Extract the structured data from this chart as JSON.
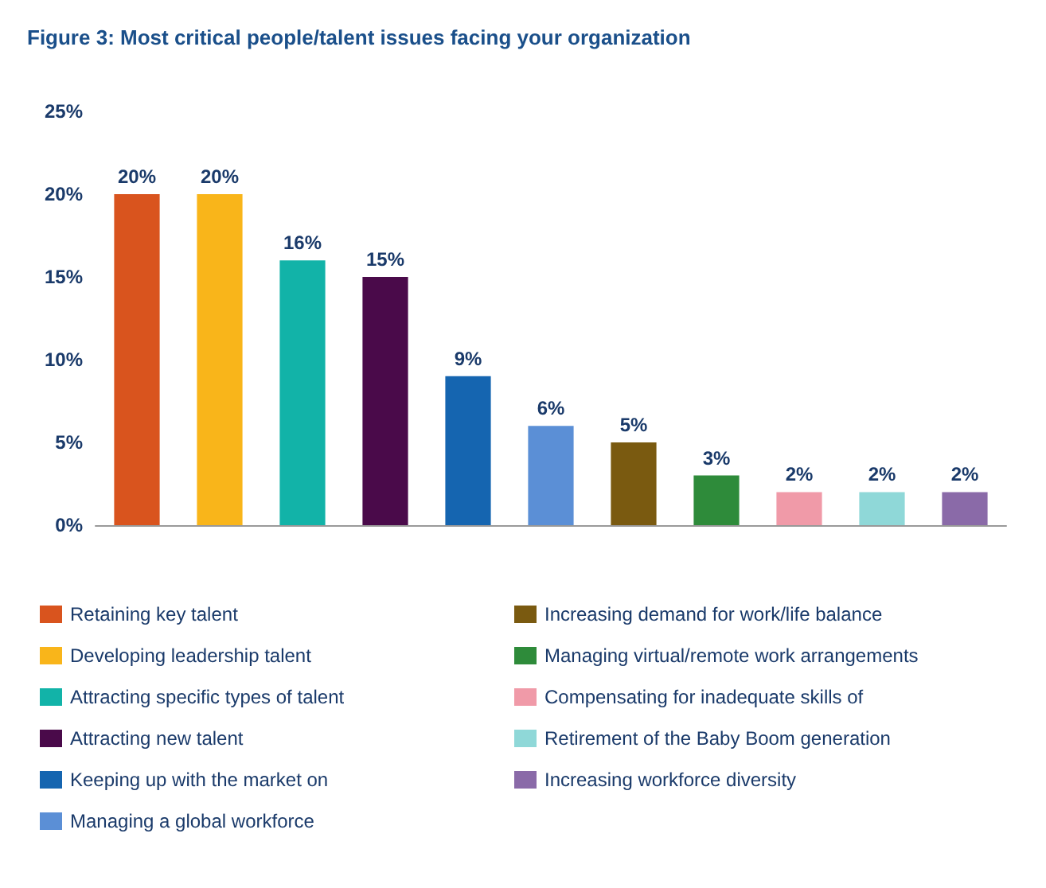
{
  "chart_data": {
    "type": "bar",
    "title": "Figure 3: Most critical people/talent issues facing your organization",
    "categories": [
      null,
      null,
      null,
      null,
      null,
      null,
      null,
      null,
      null,
      null,
      null
    ],
    "stacked": true,
    "series": [
      {
        "name": "Retaining key talent",
        "color": "#d9541e",
        "values": [
          20,
          null,
          null,
          null,
          null,
          null,
          null,
          null,
          null,
          null,
          null
        ],
        "value_labels": [
          "20%",
          null,
          null,
          null,
          null,
          null,
          null,
          null,
          null,
          null,
          null
        ]
      },
      {
        "name": "Developing leadership talent",
        "color": "#f9b51a",
        "values": [
          null,
          20,
          null,
          null,
          null,
          null,
          null,
          null,
          null,
          null,
          null
        ],
        "value_labels": [
          null,
          "20%",
          null,
          null,
          null,
          null,
          null,
          null,
          null,
          null,
          null
        ]
      },
      {
        "name": "Attracting specific types of talent",
        "color": "#12b3a8",
        "values": [
          null,
          null,
          16,
          null,
          null,
          null,
          null,
          null,
          null,
          null,
          null
        ],
        "value_labels": [
          null,
          null,
          "16%",
          null,
          null,
          null,
          null,
          null,
          null,
          null,
          null
        ]
      },
      {
        "name": "Attracting new talent",
        "color": "#4a0a4a",
        "values": [
          null,
          null,
          null,
          15,
          null,
          null,
          null,
          null,
          null,
          null,
          null
        ],
        "value_labels": [
          null,
          null,
          null,
          "15%",
          null,
          null,
          null,
          null,
          null,
          null,
          null
        ]
      },
      {
        "name": "Keeping up with the market on",
        "color": "#1565b0",
        "values": [
          null,
          null,
          null,
          null,
          9,
          null,
          null,
          null,
          null,
          null,
          null
        ],
        "value_labels": [
          null,
          null,
          null,
          null,
          "9%",
          null,
          null,
          null,
          null,
          null,
          null
        ]
      },
      {
        "name": "Managing a global workforce",
        "color": "#5b8fd6",
        "values": [
          null,
          null,
          null,
          null,
          null,
          6,
          null,
          null,
          null,
          null,
          null
        ],
        "value_labels": [
          null,
          null,
          null,
          null,
          null,
          "6%",
          null,
          null,
          null,
          null,
          null
        ]
      },
      {
        "name": "Increasing demand for work/life balance",
        "color": "#7a5a10",
        "values": [
          null,
          null,
          null,
          null,
          null,
          null,
          5,
          null,
          null,
          null,
          null
        ],
        "value_labels": [
          null,
          null,
          null,
          null,
          null,
          null,
          "5%",
          null,
          null,
          null,
          null
        ]
      },
      {
        "name": "Managing virtual/remote work arrangements",
        "color": "#2e8b3a",
        "values": [
          null,
          null,
          null,
          null,
          null,
          null,
          null,
          3,
          null,
          null,
          null
        ],
        "value_labels": [
          null,
          null,
          null,
          null,
          null,
          null,
          null,
          "3%",
          null,
          null,
          null
        ]
      },
      {
        "name": "Compensating for inadequate skills of",
        "color": "#f09aa8",
        "values": [
          null,
          null,
          null,
          null,
          null,
          null,
          null,
          null,
          2,
          null,
          null
        ],
        "value_labels": [
          null,
          null,
          null,
          null,
          null,
          null,
          null,
          null,
          "2%",
          null,
          null
        ]
      },
      {
        "name": "Retirement of the Baby Boom generation",
        "color": "#8fd8d8",
        "values": [
          null,
          null,
          null,
          null,
          null,
          null,
          null,
          null,
          null,
          2,
          null
        ],
        "value_labels": [
          null,
          null,
          null,
          null,
          null,
          null,
          null,
          null,
          null,
          "2%",
          null
        ]
      },
      {
        "name": "Increasing workforce diversity",
        "color": "#8a6aa8",
        "values": [
          null,
          null,
          null,
          null,
          null,
          null,
          null,
          null,
          null,
          null,
          2
        ],
        "value_labels": [
          null,
          null,
          null,
          null,
          null,
          null,
          null,
          null,
          null,
          null,
          "2%"
        ]
      }
    ],
    "ylim": [
      0,
      25
    ],
    "yticks": [
      {
        "value": 0,
        "label": "0%"
      },
      {
        "value": 5,
        "label": "5%"
      },
      {
        "value": 10,
        "label": "10%"
      },
      {
        "value": 15,
        "label": "15%"
      },
      {
        "value": 20,
        "label": "20%"
      },
      {
        "value": 25,
        "label": "25%"
      }
    ],
    "grid": false,
    "legend": "bottom"
  }
}
